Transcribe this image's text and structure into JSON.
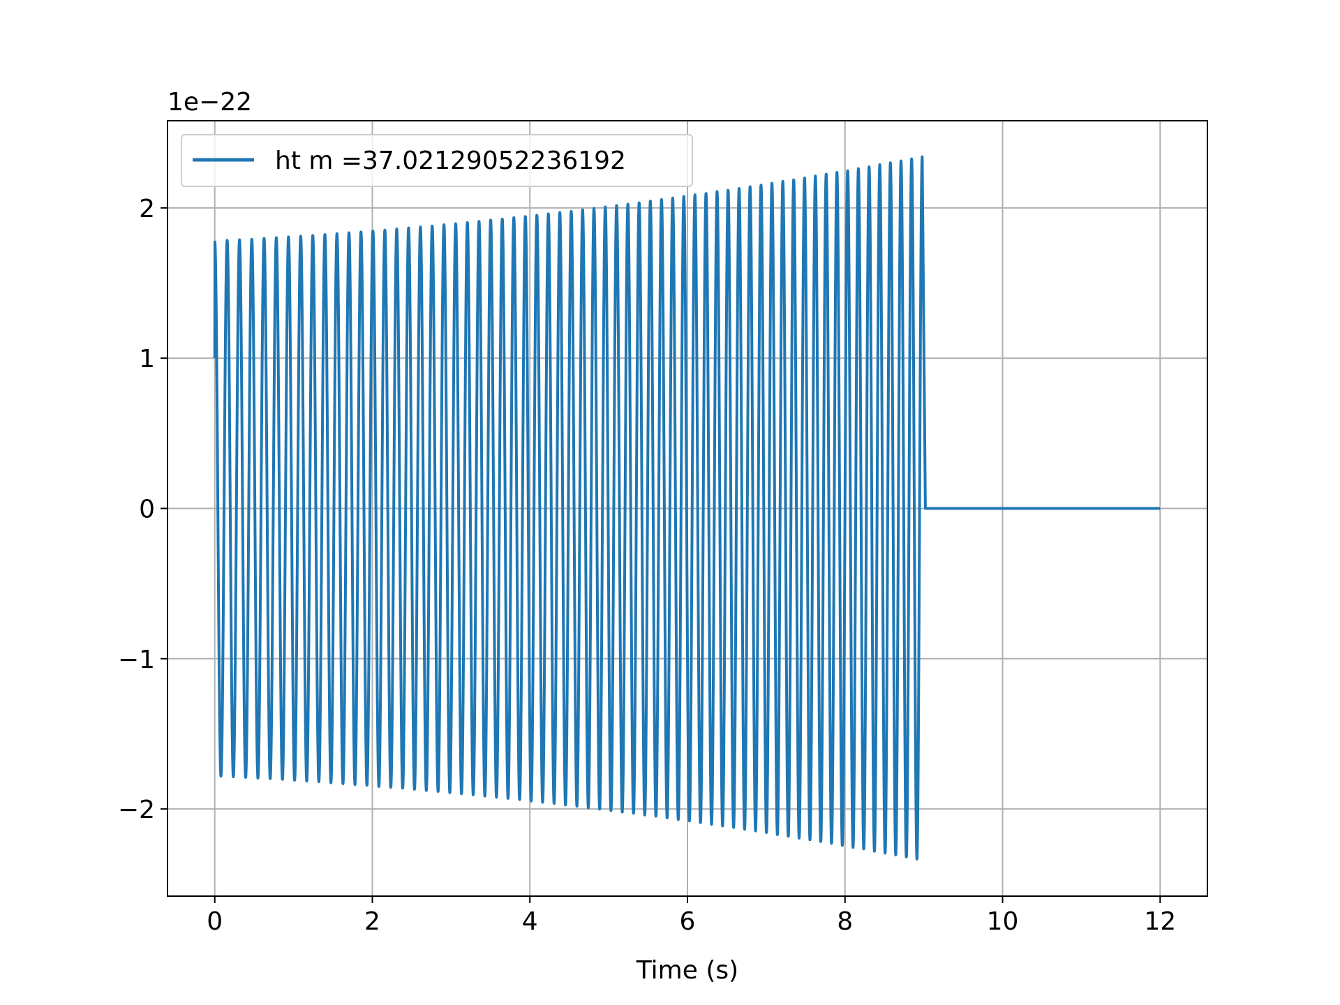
{
  "chart_data": {
    "type": "line",
    "title": "",
    "xlabel": "Time (s)",
    "ylabel": "",
    "y_offset_label": "1e−22",
    "xlim": [
      -0.6,
      12.6
    ],
    "ylim": [
      -2.58,
      2.58
    ],
    "xticks": [
      0,
      2,
      4,
      6,
      8,
      10,
      12
    ],
    "xtick_labels": [
      "0",
      "2",
      "4",
      "6",
      "8",
      "10",
      "12"
    ],
    "yticks": [
      -2,
      -1,
      0,
      1,
      2
    ],
    "ytick_labels": [
      "−2",
      "−1",
      "0",
      "1",
      "2"
    ],
    "grid": true,
    "legend_position": "top-left",
    "series": [
      {
        "name": "ht m =37.02129052236192",
        "color": "#1f77b4",
        "signal": {
          "t_start": 0.0,
          "t_merger": 8.98,
          "t_end": 12.0,
          "cycles": 62,
          "amplitude_start": 1.78,
          "amplitude_merger": 2.34,
          "start_value": 1.0,
          "post_merger_value": 0
        }
      }
    ]
  }
}
